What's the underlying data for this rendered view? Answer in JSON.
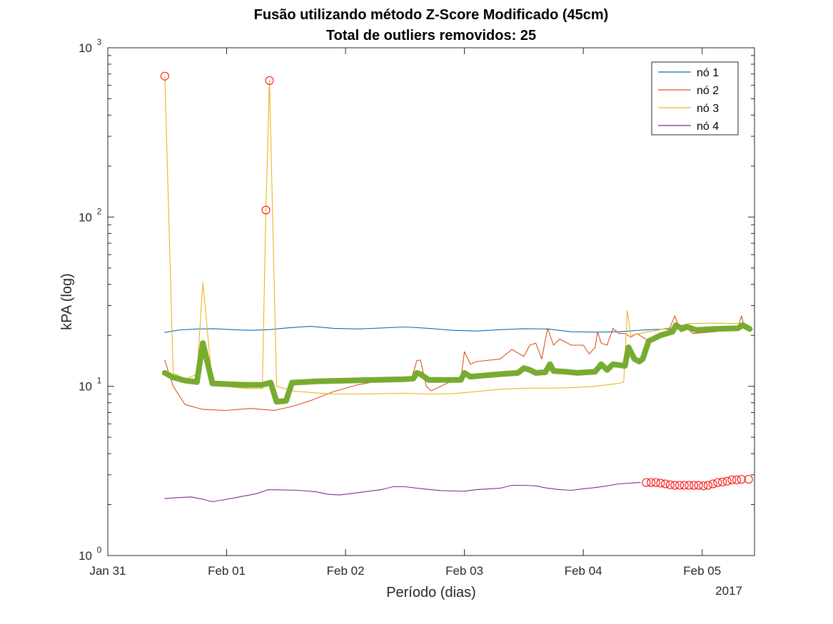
{
  "chart_data": {
    "type": "line",
    "title": "Fusão utilizando método Z-Score Modificado (45cm)",
    "subtitle": "Total de outliers removidos: 25",
    "xlabel": "Período (dias)",
    "ylabel": "kPA (log)",
    "yscale": "log",
    "ylim": [
      1,
      1000
    ],
    "y_ticks": [
      {
        "value": 1,
        "base": "10",
        "exp": "0"
      },
      {
        "value": 10,
        "base": "10",
        "exp": "1"
      },
      {
        "value": 100,
        "base": "10",
        "exp": "2"
      },
      {
        "value": 1000,
        "base": "10",
        "exp": "3"
      }
    ],
    "xlim": [
      0,
      5.44
    ],
    "x_ticks": [
      {
        "value": 0,
        "label": "Jan 31"
      },
      {
        "value": 1,
        "label": "Feb 01"
      },
      {
        "value": 2,
        "label": "Feb 02"
      },
      {
        "value": 3,
        "label": "Feb 03"
      },
      {
        "value": 4,
        "label": "Feb 04"
      },
      {
        "value": 5,
        "label": "Feb 05"
      }
    ],
    "x_secondary_label": "2017",
    "legend_position": "top-right",
    "grid": false,
    "series": [
      {
        "name": "nó 1",
        "color": "#0072BD",
        "points": [
          [
            0.48,
            20.8
          ],
          [
            0.6,
            21.5
          ],
          [
            0.75,
            21.8
          ],
          [
            0.9,
            21.9
          ],
          [
            1.05,
            21.6
          ],
          [
            1.2,
            21.4
          ],
          [
            1.35,
            21.6
          ],
          [
            1.5,
            22.1
          ],
          [
            1.7,
            22.6
          ],
          [
            1.9,
            22.0
          ],
          [
            2.1,
            21.8
          ],
          [
            2.3,
            22.1
          ],
          [
            2.5,
            22.4
          ],
          [
            2.7,
            22.0
          ],
          [
            2.9,
            21.4
          ],
          [
            3.1,
            21.2
          ],
          [
            3.3,
            21.6
          ],
          [
            3.5,
            21.9
          ],
          [
            3.7,
            21.8
          ],
          [
            3.9,
            21.0
          ],
          [
            4.1,
            20.9
          ],
          [
            4.3,
            21.0
          ],
          [
            4.5,
            21.5
          ],
          [
            4.7,
            21.8
          ],
          [
            4.9,
            21.9
          ],
          [
            5.1,
            22.2
          ],
          [
            5.3,
            22.3
          ],
          [
            5.4,
            22.2
          ]
        ]
      },
      {
        "name": "nó 2",
        "color": "#D95319",
        "points": [
          [
            0.48,
            14.2
          ],
          [
            0.55,
            10.0
          ],
          [
            0.65,
            7.8
          ],
          [
            0.8,
            7.3
          ],
          [
            1.0,
            7.2
          ],
          [
            1.2,
            7.4
          ],
          [
            1.4,
            7.2
          ],
          [
            1.55,
            7.6
          ],
          [
            1.7,
            8.2
          ],
          [
            1.9,
            9.3
          ],
          [
            2.1,
            10.2
          ],
          [
            2.3,
            10.8
          ],
          [
            2.5,
            10.7
          ],
          [
            2.55,
            10.8
          ],
          [
            2.6,
            14.2
          ],
          [
            2.63,
            14.3
          ],
          [
            2.68,
            10.0
          ],
          [
            2.72,
            9.4
          ],
          [
            2.8,
            10.0
          ],
          [
            2.9,
            10.8
          ],
          [
            2.97,
            11.0
          ],
          [
            3.0,
            16.0
          ],
          [
            3.05,
            13.5
          ],
          [
            3.1,
            14.0
          ],
          [
            3.3,
            14.5
          ],
          [
            3.4,
            16.5
          ],
          [
            3.5,
            15.0
          ],
          [
            3.55,
            17.5
          ],
          [
            3.6,
            18.0
          ],
          [
            3.65,
            14.5
          ],
          [
            3.7,
            22.0
          ],
          [
            3.75,
            17.5
          ],
          [
            3.8,
            19.0
          ],
          [
            3.9,
            17.5
          ],
          [
            4.0,
            17.5
          ],
          [
            4.05,
            15.5
          ],
          [
            4.1,
            17.0
          ],
          [
            4.12,
            21.0
          ],
          [
            4.15,
            18.0
          ],
          [
            4.2,
            17.5
          ],
          [
            4.25,
            22.0
          ],
          [
            4.3,
            20.5
          ],
          [
            4.35,
            20.5
          ],
          [
            4.4,
            19.5
          ],
          [
            4.45,
            20.5
          ],
          [
            4.5,
            19.5
          ],
          [
            4.55,
            18.5
          ],
          [
            4.6,
            19.0
          ],
          [
            4.7,
            20.0
          ],
          [
            4.77,
            26.0
          ],
          [
            4.82,
            21.0
          ],
          [
            4.88,
            22.0
          ],
          [
            4.92,
            20.5
          ],
          [
            5.1,
            21.0
          ],
          [
            5.3,
            22.0
          ],
          [
            5.33,
            26.0
          ],
          [
            5.36,
            22.0
          ],
          [
            5.4,
            22.5
          ]
        ]
      },
      {
        "name": "nó 3",
        "color": "#EDB120",
        "points": [
          [
            0.48,
            680
          ],
          [
            0.55,
            12.0
          ],
          [
            0.65,
            11.0
          ],
          [
            0.75,
            11.8
          ],
          [
            0.8,
            41.0
          ],
          [
            0.88,
            10.3
          ],
          [
            1.0,
            10.0
          ],
          [
            1.1,
            9.8
          ],
          [
            1.2,
            9.7
          ],
          [
            1.3,
            9.7
          ],
          [
            1.33,
            110
          ],
          [
            1.36,
            640
          ],
          [
            1.42,
            10.0
          ],
          [
            1.55,
            9.4
          ],
          [
            1.7,
            9.2
          ],
          [
            1.9,
            9.0
          ],
          [
            2.1,
            9.0
          ],
          [
            2.3,
            9.05
          ],
          [
            2.5,
            9.1
          ],
          [
            2.7,
            9.0
          ],
          [
            2.9,
            9.05
          ],
          [
            3.1,
            9.3
          ],
          [
            3.3,
            9.6
          ],
          [
            3.5,
            9.75
          ],
          [
            3.7,
            9.75
          ],
          [
            3.9,
            9.8
          ],
          [
            4.1,
            10.0
          ],
          [
            4.3,
            10.4
          ],
          [
            4.34,
            10.6
          ],
          [
            4.37,
            28.0
          ],
          [
            4.4,
            20.0
          ],
          [
            4.55,
            21.0
          ],
          [
            4.7,
            22.0
          ],
          [
            4.9,
            23.5
          ],
          [
            5.1,
            23.6
          ],
          [
            5.3,
            23.5
          ],
          [
            5.4,
            22.5
          ]
        ]
      },
      {
        "name": "nó 4",
        "color": "#7E2F8E",
        "points": [
          [
            0.48,
            2.17
          ],
          [
            0.6,
            2.2
          ],
          [
            0.7,
            2.22
          ],
          [
            0.8,
            2.15
          ],
          [
            0.88,
            2.08
          ],
          [
            0.95,
            2.12
          ],
          [
            1.05,
            2.18
          ],
          [
            1.15,
            2.25
          ],
          [
            1.25,
            2.32
          ],
          [
            1.35,
            2.45
          ],
          [
            1.5,
            2.44
          ],
          [
            1.6,
            2.43
          ],
          [
            1.75,
            2.38
          ],
          [
            1.85,
            2.3
          ],
          [
            1.95,
            2.28
          ],
          [
            2.1,
            2.35
          ],
          [
            2.3,
            2.45
          ],
          [
            2.4,
            2.55
          ],
          [
            2.5,
            2.55
          ],
          [
            2.6,
            2.5
          ],
          [
            2.8,
            2.42
          ],
          [
            3.0,
            2.4
          ],
          [
            3.1,
            2.45
          ],
          [
            3.3,
            2.5
          ],
          [
            3.4,
            2.6
          ],
          [
            3.5,
            2.6
          ],
          [
            3.6,
            2.58
          ],
          [
            3.7,
            2.5
          ],
          [
            3.8,
            2.45
          ],
          [
            3.9,
            2.43
          ],
          [
            4.0,
            2.48
          ],
          [
            4.1,
            2.52
          ],
          [
            4.2,
            2.58
          ],
          [
            4.3,
            2.65
          ],
          [
            4.4,
            2.68
          ],
          [
            4.48,
            2.7
          ]
        ]
      },
      {
        "name": "",
        "color": "#77AC30",
        "points": [
          [
            0.48,
            12.0
          ],
          [
            0.55,
            11.3
          ],
          [
            0.65,
            10.8
          ],
          [
            0.75,
            10.6
          ],
          [
            0.8,
            18.0
          ],
          [
            0.88,
            10.4
          ],
          [
            1.0,
            10.3
          ],
          [
            1.15,
            10.2
          ],
          [
            1.3,
            10.2
          ],
          [
            1.37,
            10.5
          ],
          [
            1.42,
            8.1
          ],
          [
            1.5,
            8.2
          ],
          [
            1.55,
            10.5
          ],
          [
            1.65,
            10.6
          ],
          [
            1.75,
            10.7
          ],
          [
            2.0,
            10.8
          ],
          [
            2.25,
            10.9
          ],
          [
            2.5,
            11.0
          ],
          [
            2.57,
            11.1
          ],
          [
            2.6,
            12.0
          ],
          [
            2.63,
            11.8
          ],
          [
            2.7,
            10.9
          ],
          [
            2.97,
            10.9
          ],
          [
            3.0,
            12.0
          ],
          [
            3.05,
            11.4
          ],
          [
            3.3,
            11.8
          ],
          [
            3.45,
            12.0
          ],
          [
            3.5,
            12.8
          ],
          [
            3.55,
            12.5
          ],
          [
            3.6,
            12.0
          ],
          [
            3.68,
            12.1
          ],
          [
            3.72,
            13.5
          ],
          [
            3.75,
            12.3
          ],
          [
            3.85,
            12.2
          ],
          [
            3.95,
            12.0
          ],
          [
            4.1,
            12.2
          ],
          [
            4.15,
            13.5
          ],
          [
            4.2,
            12.5
          ],
          [
            4.25,
            13.5
          ],
          [
            4.35,
            13.2
          ],
          [
            4.38,
            17.0
          ],
          [
            4.43,
            14.5
          ],
          [
            4.47,
            14.0
          ],
          [
            4.5,
            14.5
          ],
          [
            4.55,
            18.5
          ],
          [
            4.65,
            20.0
          ],
          [
            4.75,
            21.0
          ],
          [
            4.78,
            23.0
          ],
          [
            4.83,
            21.8
          ],
          [
            4.87,
            22.5
          ],
          [
            4.95,
            21.5
          ],
          [
            5.1,
            21.8
          ],
          [
            5.3,
            22.0
          ],
          [
            5.34,
            23.0
          ],
          [
            5.4,
            21.8
          ]
        ]
      }
    ],
    "outliers": {
      "color": "#FF0000",
      "points": [
        [
          0.48,
          680
        ],
        [
          1.33,
          110
        ],
        [
          1.36,
          640
        ],
        [
          4.53,
          2.7
        ],
        [
          4.57,
          2.7
        ],
        [
          4.61,
          2.7
        ],
        [
          4.65,
          2.68
        ],
        [
          4.69,
          2.65
        ],
        [
          4.73,
          2.62
        ],
        [
          4.77,
          2.6
        ],
        [
          4.81,
          2.6
        ],
        [
          4.85,
          2.6
        ],
        [
          4.89,
          2.6
        ],
        [
          4.93,
          2.6
        ],
        [
          4.97,
          2.6
        ],
        [
          5.01,
          2.58
        ],
        [
          5.05,
          2.6
        ],
        [
          5.09,
          2.65
        ],
        [
          5.13,
          2.7
        ],
        [
          5.17,
          2.72
        ],
        [
          5.21,
          2.75
        ],
        [
          5.25,
          2.8
        ],
        [
          5.29,
          2.8
        ],
        [
          5.33,
          2.82
        ],
        [
          5.39,
          2.82
        ]
      ]
    }
  }
}
